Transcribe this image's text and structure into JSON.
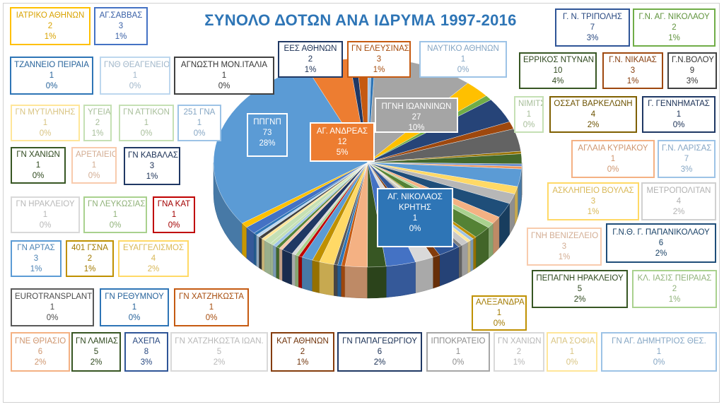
{
  "chart_data": {
    "type": "pie",
    "title": "ΣΥΝΟΛΟ ΔΟΤΩΝ ΑΝΑ ΙΔΡΥΜΑ 1997-2016",
    "slices": [
      {
        "name": "ΠΓΝΗ ΙΩΑΝΝΙΝΩΝ",
        "value": 27,
        "pct": "10%",
        "color": "#a5a5a5"
      },
      {
        "name": "Γ. Ν. ΤΡΙΠΟΛΗΣ",
        "value": 7,
        "pct": "3%",
        "color": "#ffc000"
      },
      {
        "name": "Γ.Ν. ΑΓ. ΝΙΚΟΛΑΟΥ",
        "value": 2,
        "pct": "1%",
        "color": "#70ad47"
      },
      {
        "name": "ΕΡΡΙΚΟΣ ΝΤΥΝΑΝ",
        "value": 10,
        "pct": "4%",
        "color": "#264478"
      },
      {
        "name": "Γ.Ν. ΝΙΚΑΙΑΣ",
        "value": 3,
        "pct": "1%",
        "color": "#9e480e"
      },
      {
        "name": "Γ.Ν.ΒΟΛΟΥ",
        "value": 9,
        "pct": "3%",
        "color": "#636363"
      },
      {
        "name": "ΝΙΜΙΤΣ",
        "value": 1,
        "pct": "0%",
        "color": "#997300"
      },
      {
        "name": "ΟΣΣΑΤ ΒΑΡΚΕΛΩΝΗ",
        "value": 4,
        "pct": "2%",
        "color": "#43682b"
      },
      {
        "name": "Γ. ΓΕΝΝΗΜΑΤΑΣ",
        "value": 1,
        "pct": "0%",
        "color": "#698ed0"
      },
      {
        "name": "ΑΓΛΑΙΑ ΚΥΡΙΑΚΟΥ",
        "value": 1,
        "pct": "0%",
        "color": "#f1975a"
      },
      {
        "name": "Γ.Ν. ΛΑΡΙΣΑΣ",
        "value": 7,
        "pct": "3%",
        "color": "#5b9bd5"
      },
      {
        "name": "ΑΣΚΛΗΠΕΙΟ ΒΟΥΛΑΣ",
        "value": 3,
        "pct": "1%",
        "color": "#ffd966"
      },
      {
        "name": "ΜΕΤΡΟΠΟΛΙΤΑΝ",
        "value": 4,
        "pct": "2%",
        "color": "#b7b7b7"
      },
      {
        "name": "Γ.Ν.Θ. Γ. ΠΑΠΑΝΙΚΟΛΑΟΥ",
        "value": 6,
        "pct": "2%",
        "color": "#1f4e79"
      },
      {
        "name": "ΓΝΗ ΒΕΝΙΖΕΛΕΙΟ",
        "value": 3,
        "pct": "1%",
        "color": "#f4b183"
      },
      {
        "name": "ΚΛ. ΙΑΣΙΣ ΠΕΙΡΑΙΑΣ",
        "value": 2,
        "pct": "1%",
        "color": "#a9d18e"
      },
      {
        "name": "ΠΕΠΑΓΝΗ ΗΡΑΚΛΕΙΟΥ",
        "value": 5,
        "pct": "2%",
        "color": "#548235"
      },
      {
        "name": "ΑΛΕΞΑΝΔΡΑ",
        "value": 1,
        "pct": "0%",
        "color": "#bf9000"
      },
      {
        "name": "ΓΝ ΑΓ. ΔΗΜΗΤΡΙΟΣ ΘΕΣ.",
        "value": 1,
        "pct": "0%",
        "color": "#9dc3e6"
      },
      {
        "name": "ΑΠΑ ΣΟΦΙΑ",
        "value": 1,
        "pct": "0%",
        "color": "#ffe699"
      },
      {
        "name": "ΓΝ ΧΑΝΙΩΝ",
        "value": 2,
        "pct": "1%",
        "color": "#c9c9c9"
      },
      {
        "name": "ΙΠΠΟΚΡΑΤΕΙΟ",
        "value": 1,
        "pct": "0%",
        "color": "#7f7f7f"
      },
      {
        "name": "ΓΝ ΠΑΠΑΓΕΩΡΓΙΟΥ",
        "value": 6,
        "pct": "2%",
        "color": "#2f5597"
      },
      {
        "name": "ΚΑΤ ΑΘΗΝΩΝ",
        "value": 2,
        "pct": "1%",
        "color": "#843c0c"
      },
      {
        "name": "ΓΝ ΧΑΤΖΗΚΩΣΤΑ ΙΩΑΝ.",
        "value": 5,
        "pct": "2%",
        "color": "#d9d9d9"
      },
      {
        "name": "ΑΧΕΠΑ",
        "value": 8,
        "pct": "3%",
        "color": "#4472c4"
      },
      {
        "name": "ΓΝ ΛΑΜΙΑΣ",
        "value": 5,
        "pct": "2%",
        "color": "#375623"
      },
      {
        "name": "ΓΝΕ ΘΡΙΑΣΙΟ",
        "value": 6,
        "pct": "2%",
        "color": "#f4b183"
      },
      {
        "name": "ΓΝ ΧΑΤΖΗΚΩΣΤΑ",
        "value": 1,
        "pct": "0%",
        "color": "#c55a11"
      },
      {
        "name": "ΓΝ ΡΕΘΥΜΝΟΥ",
        "value": 1,
        "pct": "0%",
        "color": "#2e75b6"
      },
      {
        "name": "EUROTRANSPLANT",
        "value": 1,
        "pct": "0%",
        "color": "#595959"
      },
      {
        "name": "ΕΥΑΓΓΕΛΙΣΜΟΣ",
        "value": 4,
        "pct": "2%",
        "color": "#ffd966"
      },
      {
        "name": "401 ΓΣΝΑ",
        "value": 2,
        "pct": "1%",
        "color": "#bf9000"
      },
      {
        "name": "ΓΝ ΑΡΤΑΣ",
        "value": 3,
        "pct": "1%",
        "color": "#5b9bd5"
      },
      {
        "name": "ΓΝΑ ΚΑΤ",
        "value": 1,
        "pct": "0%",
        "color": "#c00000"
      },
      {
        "name": "ΓΝ ΛΕΥΚΩΣΙΑΣ",
        "value": 1,
        "pct": "0%",
        "color": "#a9d18e"
      },
      {
        "name": "ΓΝ ΗΡΑΚΛΕΙΟΥ",
        "value": 1,
        "pct": "0%",
        "color": "#d9d9d9"
      },
      {
        "name": "ΓΝ ΚΑΒΑΛΑΣ",
        "value": 3,
        "pct": "1%",
        "color": "#203864"
      },
      {
        "name": "ΑΡΕΤΑΙΕΙΟ",
        "value": 1,
        "pct": "0%",
        "color": "#f8cbad"
      },
      {
        "name": "ΓΝ ΧΑΝΙΩΝ",
        "value": 1,
        "pct": "0%",
        "color": "#548235"
      },
      {
        "name": "251 ΓΝΑ",
        "value": 1,
        "pct": "0%",
        "color": "#9dc3e6"
      },
      {
        "name": "ΓΝ ΑΤΤΙΚΟΝ",
        "value": 1,
        "pct": "0%",
        "color": "#c5e0b4"
      },
      {
        "name": "ΥΓΕΙΑ",
        "value": 2,
        "pct": "1%",
        "color": "#c5e0b4"
      },
      {
        "name": "ΓΝ ΜΥΤΙΛΗΝΗΣ",
        "value": 1,
        "pct": "0%",
        "color": "#ffe699"
      },
      {
        "name": "ΑΓΝΩΣΤΗ ΜΟΝ.ΙΤΑΛΙΑ",
        "value": 1,
        "pct": "0%",
        "color": "#404040"
      },
      {
        "name": "ΓΝΘ ΘΕΑΓΕΝΕΙΟ",
        "value": 1,
        "pct": "0%",
        "color": "#bdd7ee"
      },
      {
        "name": "ΤΖΑΝΝΕΙΟ ΠΕΙΡΑΙΑ",
        "value": 1,
        "pct": "0%",
        "color": "#2e75b6"
      },
      {
        "name": "ΑΓ.ΣΑΒΒΑΣ",
        "value": 3,
        "pct": "1%",
        "color": "#4472c4"
      },
      {
        "name": "ΙΑΤΡΙΚΟ ΑΘΗΝΩΝ",
        "value": 2,
        "pct": "1%",
        "color": "#ffc000"
      },
      {
        "name": "ΠΠΓΝΠ",
        "value": 73,
        "pct": "28%",
        "color": "#5b9bd5"
      },
      {
        "name": "ΑΓ. ΑΝΔΡΕΑΣ",
        "value": 12,
        "pct": "5%",
        "color": "#ed7d31"
      },
      {
        "name": "ΕΕΣ ΑΘΗΝΩΝ",
        "value": 2,
        "pct": "1%",
        "color": "#203864"
      },
      {
        "name": "ΓΝ ΕΛΕΥΣΙΝΑΣ",
        "value": 3,
        "pct": "1%",
        "color": "#c55a11"
      },
      {
        "name": "ΝΑΥΤΙΚΟ ΑΘΗΝΩΝ",
        "value": 1,
        "pct": "0%",
        "color": "#9dc3e6"
      },
      {
        "name": "ΑΓ. ΝΙΚΟΛΑΟΣ ΚΡΗΤΗΣ",
        "value": 1,
        "pct": "0%",
        "color": "#2e75b6"
      }
    ],
    "labels": [
      {
        "name": "ΙΑΤΡΙΚΟ ΑΘΗΝΩΝ",
        "value": "2",
        "pct": "1%",
        "color": "#ffc000"
      },
      {
        "name": "ΑΓ.ΣΑΒΒΑΣ",
        "value": "3",
        "pct": "1%",
        "color": "#4472c4"
      },
      {
        "name": "ΕΕΣ ΑΘΗΝΩΝ",
        "value": "2",
        "pct": "1%",
        "color": "#203864"
      },
      {
        "name": "ΓΝ ΕΛΕΥΣΙΝΑΣ",
        "value": "3",
        "pct": "1%",
        "color": "#c55a11"
      },
      {
        "name": "ΝΑΥΤΙΚΟ ΑΘΗΝΩΝ",
        "value": "1",
        "pct": "0%",
        "color": "#9dc3e6"
      },
      {
        "name": "Γ. Ν. ΤΡΙΠΟΛΗΣ",
        "value": "7",
        "pct": "3%",
        "color": "#2f5597"
      },
      {
        "name": "Γ.Ν. ΑΓ. ΝΙΚΟΛΑΟΥ",
        "value": "2",
        "pct": "1%",
        "color": "#70ad47"
      },
      {
        "name": "ΤΖΑΝΝΕΙΟ ΠΕΙΡΑΙΑ",
        "value": "1",
        "pct": "0%",
        "color": "#2e75b6"
      },
      {
        "name": "ΓΝΘ ΘΕΑΓΕΝΕΙΟ",
        "value": "1",
        "pct": "0%",
        "color": "#bdd7ee"
      },
      {
        "name": "ΑΓΝΩΣΤΗ  ΜΟΝ.ΙΤΑΛΙΑ",
        "value": "1",
        "pct": "0%",
        "color": "#404040"
      },
      {
        "name": "ΕΡΡΙΚΟΣ ΝΤΥΝΑΝ",
        "value": "10",
        "pct": "4%",
        "color": "#375623"
      },
      {
        "name": "Γ.Ν. ΝΙΚΑΙΑΣ",
        "value": "3",
        "pct": "1%",
        "color": "#9e480e"
      },
      {
        "name": "Γ.Ν.ΒΟΛΟΥ",
        "value": "9",
        "pct": "3%",
        "color": "#404040"
      },
      {
        "name": "ΓΝ ΜΥΤΙΛΗΝΗΣ",
        "value": "1",
        "pct": "0%",
        "color": "#ffe699"
      },
      {
        "name": "ΥΓΕΙΑ",
        "value": "2",
        "pct": "1%",
        "color": "#c5e0b4"
      },
      {
        "name": "ΓΝ ΑΤΤΙΚΟΝ",
        "value": "1",
        "pct": "0%",
        "color": "#c5e0b4"
      },
      {
        "name": "251 ΓΝΑ",
        "value": "1",
        "pct": "0%",
        "color": "#9dc3e6"
      },
      {
        "name": "ΝΙΜΙΤΣ",
        "value": "1",
        "pct": "0%",
        "color": "#c5e0b4"
      },
      {
        "name": "ΟΣΣΑΤ ΒΑΡΚΕΛΩΝΗ",
        "value": "4",
        "pct": "2%",
        "color": "#7f6000"
      },
      {
        "name": "Γ. ΓΕΝΝΗΜΑΤΑΣ",
        "value": "1",
        "pct": "0%",
        "color": "#1f3864"
      },
      {
        "name": "ΓΝ ΧΑΝΙΩΝ",
        "value": "1",
        "pct": "0%",
        "color": "#375623"
      },
      {
        "name": "ΑΡΕΤΑΙΕΙΟ",
        "value": "1",
        "pct": "0%",
        "color": "#f8cbad"
      },
      {
        "name": "ΓΝ ΚΑΒΑΛΑΣ",
        "value": "3",
        "pct": "1%",
        "color": "#203864"
      },
      {
        "name": "ΑΓΛΑΙΑ ΚΥΡΙΑΚΟΥ",
        "value": "1",
        "pct": "0%",
        "color": "#f4b183"
      },
      {
        "name": "Γ.Ν. ΛΑΡΙΣΑΣ",
        "value": "7",
        "pct": "3%",
        "color": "#9dc3e6"
      },
      {
        "name": "ΓΝ ΗΡΑΚΛΕΙΟΥ",
        "value": "1",
        "pct": "0%",
        "color": "#d9d9d9"
      },
      {
        "name": "ΓΝ ΛΕΥΚΩΣΙΑΣ",
        "value": "1",
        "pct": "0%",
        "color": "#a9d18e"
      },
      {
        "name": "ΓΝΑ ΚΑΤ",
        "value": "1",
        "pct": "0%",
        "color": "#c00000"
      },
      {
        "name": "ΑΣΚΛΗΠΕΙΟ ΒΟΥΛΑΣ",
        "value": "3",
        "pct": "1%",
        "color": "#ffd966"
      },
      {
        "name": "ΜΕΤΡΟΠΟΛΙΤΑΝ",
        "value": "4",
        "pct": "2%",
        "color": "#d0d0d0"
      },
      {
        "name": "ΓΝ ΑΡΤΑΣ",
        "value": "3",
        "pct": "1%",
        "color": "#5b9bd5"
      },
      {
        "name": "401 ΓΣΝΑ",
        "value": "2",
        "pct": "1%",
        "color": "#bf9000"
      },
      {
        "name": "ΕΥΑΓΓΕΛΙΣΜΟΣ",
        "value": "4",
        "pct": "2%",
        "color": "#ffd966"
      },
      {
        "name": "ΓΝΗ ΒΕΝΙΖΕΛΕΙΟ",
        "value": "3",
        "pct": "1%",
        "color": "#f8cbad"
      },
      {
        "name": "Γ.Ν.Θ. Γ. ΠΑΠΑΝΙΚΟΛΑΟΥ",
        "value": "6",
        "pct": "2%",
        "color": "#1f4e79"
      },
      {
        "name": "ΠΕΠΑΓΝΗ ΗΡΑΚΛΕΙΟΥ",
        "value": "5",
        "pct": "2%",
        "color": "#375623"
      },
      {
        "name": "ΚΛ. ΙΑΣΙΣ ΠΕΙΡΑΙΑΣ",
        "value": "2",
        "pct": "1%",
        "color": "#a9d18e"
      },
      {
        "name": "EUROTRANSPLANT",
        "value": "1",
        "pct": "0%",
        "color": "#595959"
      },
      {
        "name": "ΓΝ ΡΕΘΥΜΝΟΥ",
        "value": "1",
        "pct": "0%",
        "color": "#2e75b6"
      },
      {
        "name": "ΓΝ ΧΑΤΖΗΚΩΣΤΑ",
        "value": "1",
        "pct": "0%",
        "color": "#c55a11"
      },
      {
        "name": "ΑΛΕΞΑΝΔΡΑ",
        "value": "1",
        "pct": "0%",
        "color": "#bf9000"
      },
      {
        "name": "ΓΝΕ ΘΡΙΑΣΙΟ",
        "value": "6",
        "pct": "2%",
        "color": "#f4b183"
      },
      {
        "name": "ΓΝ ΛΑΜΙΑΣ",
        "value": "5",
        "pct": "2%",
        "color": "#375623"
      },
      {
        "name": "ΑΧΕΠΑ",
        "value": "8",
        "pct": "3%",
        "color": "#2f5597"
      },
      {
        "name": "ΓΝ ΧΑΤΖΗΚΩΣΤΑ ΙΩΑΝ.",
        "value": "5",
        "pct": "2%",
        "color": "#d9d9d9"
      },
      {
        "name": "ΚΑΤ ΑΘΗΝΩΝ",
        "value": "2",
        "pct": "1%",
        "color": "#843c0c"
      },
      {
        "name": "ΓΝ ΠΑΠΑΓΕΩΡΓΙΟΥ",
        "value": "6",
        "pct": "2%",
        "color": "#1f3864"
      },
      {
        "name": "ΙΠΠΟΚΡΑΤΕΙΟ",
        "value": "1",
        "pct": "0%",
        "color": "#a6a6a6"
      },
      {
        "name": "ΓΝ ΧΑΝΙΩΝ",
        "value": "2",
        "pct": "1%",
        "color": "#d9d9d9"
      },
      {
        "name": "ΑΠΑ ΣΟΦΙΑ",
        "value": "1",
        "pct": "0%",
        "color": "#ffe699"
      },
      {
        "name": "ΓΝ ΑΓ. ΔΗΜΗΤΡΙΟΣ ΘΕΣ.",
        "value": "1",
        "pct": "0%",
        "color": "#9dc3e6"
      }
    ],
    "inner_labels": [
      {
        "name": "ΠΠΓΝΠ",
        "value": "73",
        "pct": "28%"
      },
      {
        "name": "ΑΓ. ΑΝΔΡΕΑΣ",
        "value": "12",
        "pct": "5%"
      },
      {
        "name": "ΠΓΝΗ ΙΩΑΝΝΙΝΩΝ",
        "value": "27",
        "pct": "10%"
      },
      {
        "name": "ΑΓ. ΝΙΚΟΛΑΟΣ\nΚΡΗΤΗΣ",
        "value": "1",
        "pct": "0%"
      }
    ]
  }
}
